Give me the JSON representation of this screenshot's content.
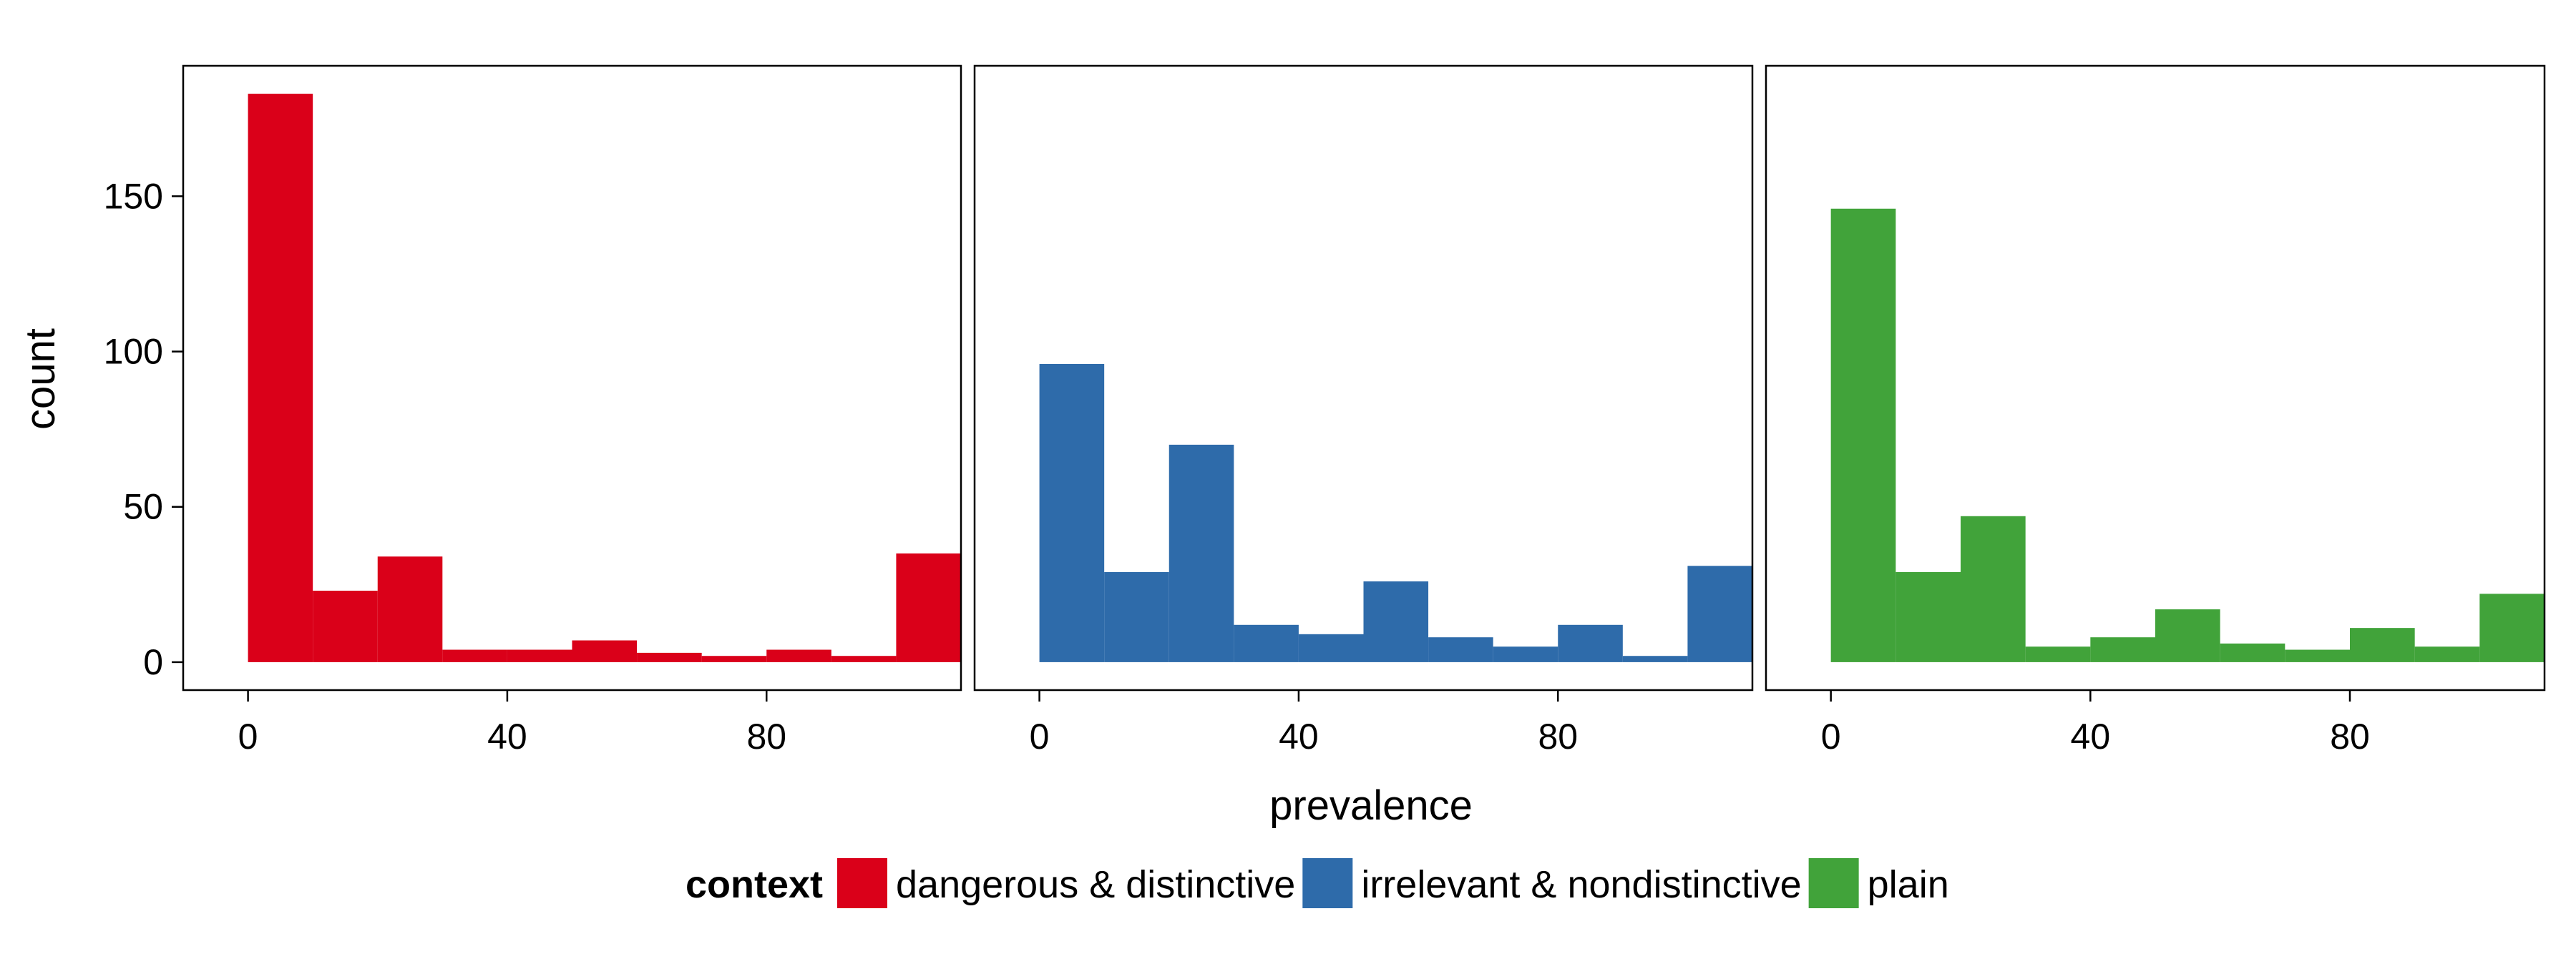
{
  "chart_data": {
    "type": "bar",
    "subtype": "faceted-histogram",
    "title": "",
    "xlabel": "prevalence",
    "ylabel": "count",
    "xlim": [
      -10,
      110
    ],
    "ylim": [
      -9,
      192
    ],
    "x_ticks": [
      0,
      40,
      80
    ],
    "x_tick_labels": [
      "0",
      "40",
      "80"
    ],
    "y_ticks": [
      0,
      50,
      100,
      150
    ],
    "y_tick_labels": [
      "0",
      "50",
      "100",
      "150"
    ],
    "bin_edges": [
      0,
      10,
      20,
      30,
      40,
      50,
      60,
      70,
      80,
      90,
      100,
      110
    ],
    "grid": false,
    "legend": {
      "title": "context",
      "position": "bottom",
      "entries": [
        "dangerous & distinctive",
        "irrelevant & nondistinctive",
        "plain"
      ]
    },
    "panels": [
      {
        "name": "dangerous & distinctive",
        "color": "#DA0019",
        "values": [
          183,
          23,
          34,
          4,
          4,
          7,
          3,
          2,
          4,
          2,
          35
        ]
      },
      {
        "name": "irrelevant & nondistinctive",
        "color": "#2E6BAA",
        "values": [
          96,
          29,
          70,
          12,
          9,
          26,
          8,
          5,
          12,
          2,
          31
        ]
      },
      {
        "name": "plain",
        "color": "#41A33A",
        "values": [
          146,
          29,
          47,
          5,
          8,
          17,
          6,
          4,
          11,
          5,
          22
        ]
      }
    ]
  }
}
